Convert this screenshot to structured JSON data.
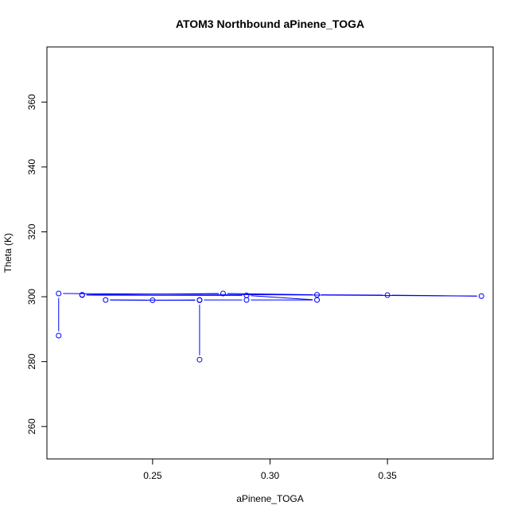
{
  "chart_data": {
    "type": "line",
    "title": "ATOM3 Northbound aPinene_TOGA",
    "xlabel": "aPinene_TOGA",
    "ylabel": "Theta (K)",
    "xlim": [
      0.205,
      0.395
    ],
    "ylim": [
      250,
      377
    ],
    "xticks": [
      0.25,
      0.3,
      0.35
    ],
    "xtick_labels": [
      "0.25",
      "0.30",
      "0.35"
    ],
    "yticks": [
      260,
      280,
      300,
      320,
      340,
      360
    ],
    "ytick_labels": [
      "260",
      "280",
      "300",
      "320",
      "340",
      "360"
    ],
    "grid": false,
    "series": [
      {
        "color": "#0000ff",
        "marker": "open-circle",
        "points": [
          {
            "x": 0.21,
            "y": 288.0
          },
          {
            "x": 0.21,
            "y": 301.0
          },
          {
            "x": 0.39,
            "y": 300.2
          },
          {
            "x": 0.35,
            "y": 300.5
          },
          {
            "x": 0.32,
            "y": 300.6
          },
          {
            "x": 0.28,
            "y": 301.0
          },
          {
            "x": 0.22,
            "y": 300.6
          },
          {
            "x": 0.22,
            "y": 300.5
          },
          {
            "x": 0.29,
            "y": 300.4
          },
          {
            "x": 0.32,
            "y": 299.0
          },
          {
            "x": 0.29,
            "y": 299.0
          },
          {
            "x": 0.27,
            "y": 299.0
          },
          {
            "x": 0.25,
            "y": 298.9
          },
          {
            "x": 0.23,
            "y": 299.0
          },
          {
            "x": 0.27,
            "y": 298.9
          },
          {
            "x": 0.27,
            "y": 280.6
          }
        ]
      }
    ]
  }
}
